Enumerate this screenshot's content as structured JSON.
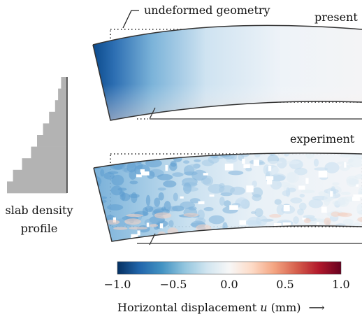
{
  "labels": {
    "undeformed": "undeformed geometry",
    "present": "present",
    "experiment": "experiment",
    "density_line1": "slab density",
    "density_line2": "profile"
  },
  "colorbar": {
    "ticks": [
      "−1.0",
      "−0.5",
      "0.0",
      "0.5",
      "1.0"
    ],
    "title_prefix": "Horizontal displacement ",
    "title_var": "u",
    "title_suffix": " (mm)",
    "arrow": "⟶",
    "cmap": [
      "#053061",
      "#2166ac",
      "#4393c3",
      "#92c5de",
      "#d1e5f0",
      "#f7f7f7",
      "#fddbc7",
      "#f4a582",
      "#d6604d",
      "#b2182b",
      "#67001f"
    ]
  },
  "density_profile": {
    "widths": [
      0.1,
      0.15,
      0.2,
      0.3,
      0.4,
      0.5,
      0.6,
      0.75,
      0.9,
      1.0
    ],
    "color": "#b3b3b3"
  }
}
